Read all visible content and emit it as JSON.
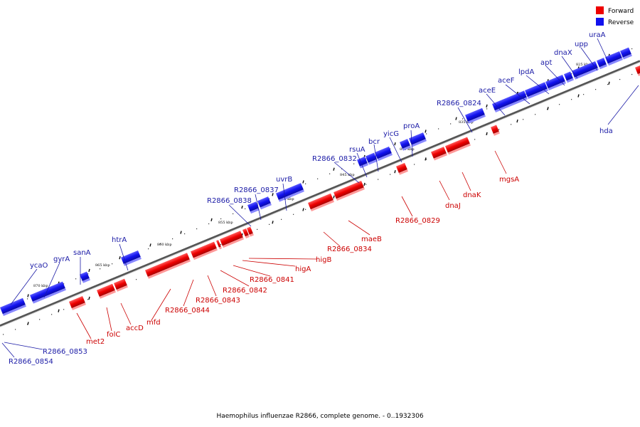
{
  "caption": "Haemophilus influenzae R2866, complete genome. - 0..1932306",
  "legend": [
    {
      "label": "Forward",
      "color": "#ee0000"
    },
    {
      "label": "Reverse",
      "color": "#1111ee"
    }
  ],
  "colors": {
    "forward": "#ee0000",
    "reverse": "#1111ee",
    "forward_label": "#cc0000",
    "reverse_label": "#1a1aa6"
  },
  "ticks": [
    "870 kbp",
    "865 kbp",
    "860 kbp",
    "855 kbp",
    "850 kbp",
    "845 kbp",
    "840 kbp",
    "835 kbp",
    "830 kbp",
    "825 kbp"
  ],
  "reverse_genes": [
    "ycaO",
    "gyrA",
    "sanA",
    "htrA",
    "R2866_0838",
    "R2866_0837",
    "uvrB",
    "R2866_0832",
    "rsuA",
    "bcr",
    "yicG",
    "proA",
    "R2866_0824",
    "aceE",
    "aceF",
    "lpdA",
    "apt",
    "dnaX",
    "upp",
    "uraA",
    "hda",
    "R2866_0853",
    "R2866_0854"
  ],
  "forward_genes": [
    "met2",
    "folC",
    "accD",
    "mfd",
    "R2866_0844",
    "R2866_0843",
    "R2866_0842",
    "R2866_0841",
    "higA",
    "higB",
    "R2866_0834",
    "maeB",
    "R2866_0829",
    "dnaJ",
    "dnaK",
    "mgsA"
  ]
}
